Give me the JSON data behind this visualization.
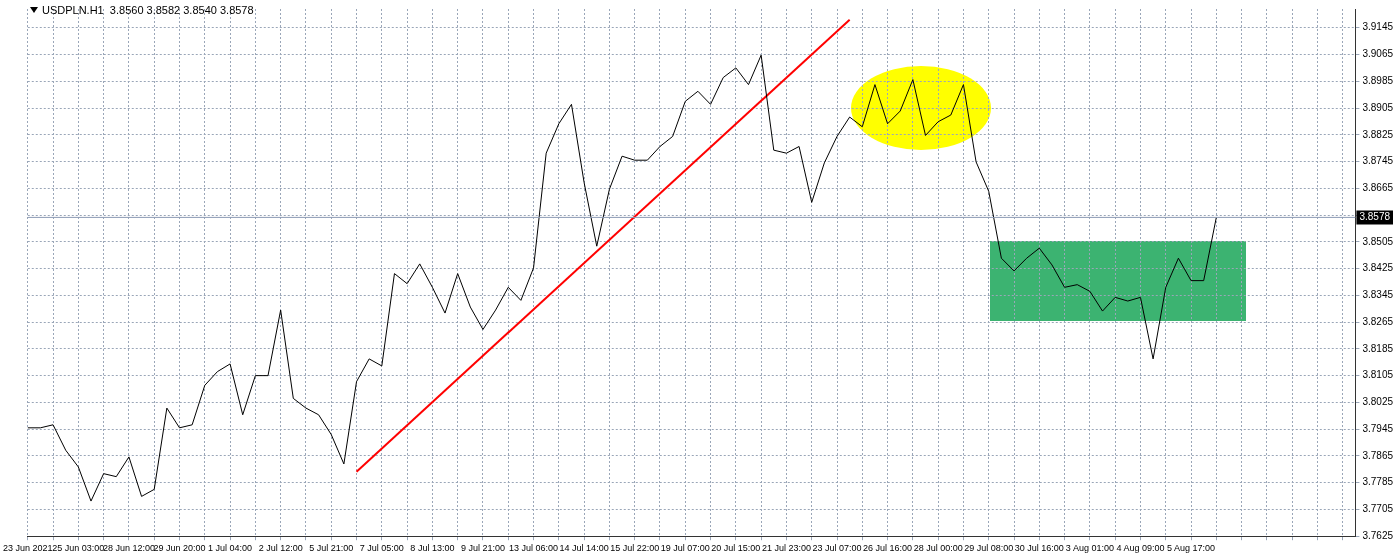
{
  "chart_data": {
    "type": "line",
    "title": "USDPLN.H1  3.8560 3.8582 3.8540 3.8578",
    "categories": [
      "23 Jun 2021",
      null,
      null,
      null,
      "25 Jun 03:00",
      null,
      null,
      null,
      "28 Jun 12:00",
      null,
      null,
      null,
      "29 Jun 20:00",
      null,
      null,
      null,
      "1 Jul 04:00",
      null,
      null,
      null,
      "2 Jul 12:00",
      null,
      null,
      null,
      "5 Jul 21:00",
      null,
      null,
      null,
      "7 Jul 05:00",
      null,
      null,
      null,
      "8 Jul 13:00",
      null,
      null,
      null,
      "9 Jul 21:00",
      null,
      null,
      null,
      "13 Jul 06:00",
      null,
      null,
      null,
      "14 Jul 14:00",
      null,
      null,
      null,
      "15 Jul 22:00",
      null,
      null,
      null,
      "19 Jul 07:00",
      null,
      null,
      null,
      "20 Jul 15:00",
      null,
      null,
      null,
      "21 Jul 23:00",
      null,
      null,
      null,
      "23 Jul 07:00",
      null,
      null,
      null,
      "26 Jul 16:00",
      null,
      null,
      null,
      "28 Jul 00:00",
      null,
      null,
      null,
      "29 Jul 08:00",
      null,
      null,
      null,
      "30 Jul 16:00",
      null,
      null,
      null,
      "3 Aug 01:00",
      null,
      null,
      null,
      "4 Aug 09:00",
      null,
      null,
      null,
      "5 Aug 17:00",
      null,
      null,
      null,
      null,
      null,
      null,
      null,
      null,
      null,
      null,
      null,
      null,
      null
    ],
    "series": [
      {
        "color": "#000000",
        "values": [
          3.7949,
          3.7949,
          3.7958,
          3.7882,
          3.7832,
          3.773,
          3.7812,
          3.7803,
          3.7862,
          3.7744,
          3.7765,
          3.8008,
          3.7949,
          3.7958,
          3.8076,
          3.8117,
          3.814,
          3.7988,
          3.8105,
          3.8105,
          3.8301,
          3.8037,
          3.8008,
          3.7988,
          3.7929,
          3.7841,
          3.8087,
          3.8155,
          3.8134,
          3.841,
          3.838,
          3.8439,
          3.8369,
          3.8292,
          3.841,
          3.831,
          3.8243,
          3.8301,
          3.8369,
          3.833,
          3.8427,
          3.877,
          3.8858,
          3.8916,
          3.8682,
          3.8492,
          3.8662,
          3.8761,
          3.8749,
          3.8749,
          3.879,
          3.882,
          3.8925,
          3.8955,
          3.8916,
          3.8996,
          3.9025,
          3.8975,
          3.9063,
          3.8779,
          3.877,
          3.879,
          3.8623,
          3.8741,
          3.882,
          3.8878,
          3.8849,
          3.8975,
          3.8858,
          3.8896,
          3.899,
          3.8823,
          3.8864,
          3.8884,
          3.8975,
          3.8744,
          3.8656,
          3.8456,
          3.8418,
          3.8456,
          3.8486,
          3.8436,
          3.8369,
          3.8377,
          3.8357,
          3.8298,
          3.8339,
          3.8328,
          3.8339,
          3.8155,
          3.8369,
          3.8456,
          3.8389,
          3.8389,
          3.8578,
          null,
          null,
          null,
          null,
          null,
          null,
          null,
          null,
          null,
          null,
          null
        ]
      },
      {
        "type": "line",
        "color": "#ff0000",
        "values": [
          null,
          null,
          null,
          null,
          null,
          null,
          null,
          null,
          null,
          null,
          null,
          null,
          null,
          null,
          null,
          null,
          null,
          null,
          null,
          null,
          null,
          null,
          null,
          null,
          null,
          null,
          3.7818,
          null,
          null,
          null,
          null,
          null,
          null,
          null,
          null,
          null,
          null,
          null,
          null,
          null,
          null,
          null,
          null,
          null,
          null,
          null,
          null,
          null,
          null,
          null,
          null,
          null,
          null,
          null,
          null,
          null,
          null,
          null,
          null,
          null,
          null,
          null,
          null,
          null,
          null,
          3.9169,
          null,
          null,
          null,
          null,
          null,
          null,
          null,
          null,
          null,
          null,
          null,
          null,
          null,
          null,
          null,
          null,
          null,
          null,
          null,
          null,
          null,
          null,
          null,
          null,
          null,
          null,
          null,
          null,
          null,
          null,
          null,
          null,
          null,
          null,
          null,
          null,
          null,
          null,
          null,
          null
        ]
      }
    ],
    "ylim": [
      3.7625,
      3.9201
    ],
    "yticks": [
      3.7625,
      3.7705,
      3.7785,
      3.7865,
      3.7945,
      3.8025,
      3.8105,
      3.8185,
      3.8265,
      3.8345,
      3.8425,
      3.8505,
      {
        "value": 3.8585,
        "label": null
      },
      3.8665,
      3.8745,
      3.8825,
      3.8905,
      3.8985,
      3.9065,
      3.9145
    ],
    "ref_lines": [
      {
        "axis": "y",
        "value": 3.8578,
        "label": "3.8578",
        "color": "#8c9bb4"
      }
    ],
    "grid": true,
    "legend": false,
    "marker": "none",
    "line_style": "solid"
  }
}
